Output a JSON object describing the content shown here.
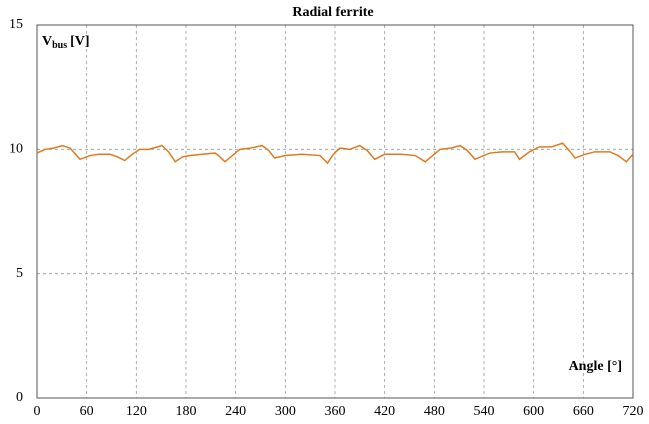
{
  "chart_data": {
    "type": "line",
    "title": "Radial ferrite",
    "y_label": {
      "main": "V",
      "sub": "bus",
      "unit": "[V]"
    },
    "x_label": "Angle [°]",
    "x": [
      0,
      10,
      20,
      31,
      40,
      52,
      64,
      75,
      88,
      97,
      106,
      115,
      124,
      135,
      151,
      159,
      167,
      176,
      185,
      200,
      215,
      221,
      227,
      236,
      245,
      258,
      272,
      280,
      287,
      300,
      320,
      342,
      351,
      358,
      366,
      378,
      390,
      399,
      408,
      420,
      440,
      457,
      469,
      478,
      487,
      500,
      511,
      520,
      529,
      547,
      562,
      577,
      583,
      595,
      607,
      622,
      635,
      643,
      650,
      662,
      674,
      692,
      702,
      712,
      720
    ],
    "series": [
      {
        "color": "#e07a1f",
        "values": [
          9.85,
          10.0,
          10.05,
          10.15,
          10.05,
          9.6,
          9.75,
          9.8,
          9.8,
          9.7,
          9.55,
          9.8,
          10.0,
          10.0,
          10.15,
          9.9,
          9.5,
          9.7,
          9.75,
          9.8,
          9.85,
          9.7,
          9.5,
          9.75,
          10.0,
          10.05,
          10.15,
          9.95,
          9.65,
          9.75,
          9.8,
          9.75,
          9.45,
          9.8,
          10.05,
          10.0,
          10.15,
          9.95,
          9.6,
          9.8,
          9.8,
          9.75,
          9.5,
          9.75,
          10.0,
          10.05,
          10.15,
          9.95,
          9.6,
          9.85,
          9.9,
          9.9,
          9.6,
          9.9,
          10.1,
          10.1,
          10.25,
          9.95,
          9.65,
          9.8,
          9.9,
          9.9,
          9.75,
          9.5,
          9.8
        ]
      }
    ],
    "xlim": [
      0,
      720
    ],
    "xticks": [
      0,
      60,
      120,
      180,
      240,
      300,
      360,
      420,
      480,
      540,
      600,
      660,
      720
    ],
    "ylim": [
      0,
      15
    ],
    "yticks": [
      0,
      5,
      10,
      15
    ],
    "grid": true
  }
}
